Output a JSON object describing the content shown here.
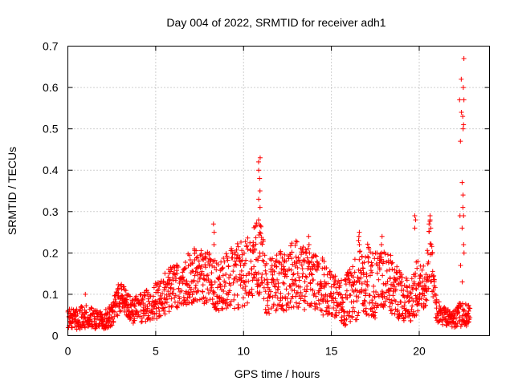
{
  "chart_data": {
    "type": "scatter",
    "title": "Day 004 of 2022, SRMTID for receiver adh1",
    "xlabel": "GPS time / hours",
    "ylabel": "SRMTID / TECUs",
    "xlim": [
      0,
      24
    ],
    "ylim": [
      0,
      0.7
    ],
    "xticks": [
      0,
      5,
      10,
      15,
      20
    ],
    "yticks": [
      0,
      0.1,
      0.2,
      0.3,
      0.4,
      0.5,
      0.6,
      0.7
    ],
    "xtick_labels": [
      "0",
      "5",
      "10",
      "15",
      "20"
    ],
    "ytick_labels": [
      "0",
      "0.1",
      "0.2",
      "0.3",
      "0.4",
      "0.5",
      "0.6",
      "0.7"
    ],
    "grid": true,
    "marker": "+",
    "color": "#ff0000",
    "series": [
      {
        "name": "adh1",
        "envelope": {
          "x": [
            0,
            0.5,
            1,
            1.5,
            2,
            2.5,
            3,
            3.3,
            3.7,
            4,
            4.5,
            5,
            5.5,
            6,
            6.5,
            7,
            7.5,
            8,
            8.5,
            9,
            9.5,
            10,
            10.5,
            10.9,
            11.3,
            12,
            12.5,
            13,
            13.5,
            14,
            14.5,
            15,
            15.5,
            16,
            16.5,
            17,
            17.5,
            18,
            18.5,
            19,
            19.5,
            19.9,
            20.3,
            20.6,
            21,
            21.5,
            22,
            22.3,
            22.6,
            22.9
          ],
          "y": [
            0.04,
            0.04,
            0.045,
            0.04,
            0.035,
            0.05,
            0.1,
            0.08,
            0.06,
            0.065,
            0.075,
            0.085,
            0.1,
            0.12,
            0.13,
            0.14,
            0.15,
            0.14,
            0.12,
            0.13,
            0.14,
            0.15,
            0.17,
            0.2,
            0.12,
            0.13,
            0.14,
            0.15,
            0.14,
            0.13,
            0.12,
            0.1,
            0.08,
            0.09,
            0.12,
            0.14,
            0.12,
            0.13,
            0.12,
            0.09,
            0.08,
            0.12,
            0.11,
            0.2,
            0.06,
            0.045,
            0.04,
            0.05,
            0.05,
            0.05
          ],
          "spread": [
            0.025,
            0.025,
            0.03,
            0.025,
            0.02,
            0.03,
            0.04,
            0.03,
            0.03,
            0.035,
            0.04,
            0.045,
            0.05,
            0.055,
            0.06,
            0.065,
            0.07,
            0.065,
            0.06,
            0.07,
            0.08,
            0.08,
            0.08,
            0.1,
            0.07,
            0.07,
            0.08,
            0.08,
            0.08,
            0.07,
            0.07,
            0.06,
            0.05,
            0.07,
            0.08,
            0.09,
            0.08,
            0.08,
            0.07,
            0.06,
            0.05,
            0.07,
            0.06,
            0.08,
            0.03,
            0.02,
            0.02,
            0.03,
            0.03,
            0.02
          ]
        },
        "spikes": [
          {
            "x": 0.95,
            "y": [
              0.1
            ]
          },
          {
            "x": 10.9,
            "y": [
              0.2,
              0.25,
              0.28,
              0.31,
              0.33,
              0.35,
              0.38,
              0.4,
              0.42,
              0.43
            ]
          },
          {
            "x": 22.35,
            "y": [
              0.17,
              0.29,
              0.47,
              0.54,
              0.57,
              0.62
            ]
          },
          {
            "x": 22.5,
            "y": [
              0.13,
              0.2,
              0.22,
              0.26,
              0.29,
              0.31,
              0.34,
              0.37,
              0.5,
              0.51,
              0.53,
              0.57,
              0.6,
              0.67
            ]
          },
          {
            "x": 19.8,
            "y": [
              0.26,
              0.28,
              0.29
            ]
          },
          {
            "x": 20.6,
            "y": [
              0.26,
              0.27,
              0.28,
              0.29
            ]
          },
          {
            "x": 16.6,
            "y": [
              0.22,
              0.23,
              0.24,
              0.25
            ]
          },
          {
            "x": 8.3,
            "y": [
              0.22,
              0.25,
              0.27
            ]
          },
          {
            "x": 13.7,
            "y": [
              0.2,
              0.22,
              0.24
            ]
          },
          {
            "x": 17.9,
            "y": [
              0.2,
              0.22,
              0.24
            ]
          }
        ]
      }
    ]
  }
}
